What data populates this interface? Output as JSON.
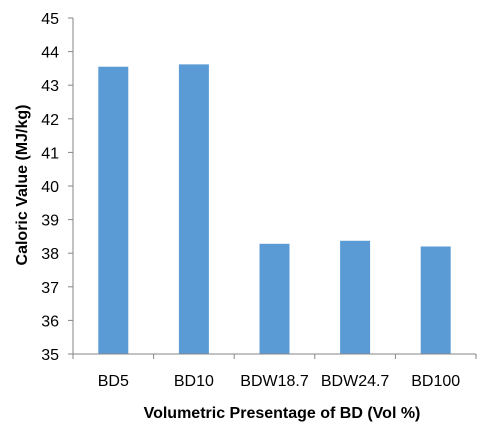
{
  "chart_data": {
    "type": "bar",
    "title": "",
    "xlabel": "Volumetric Presentage of BD (Vol %)",
    "ylabel": "Caloric Value (MJ/kg)",
    "categories": [
      "BD5",
      "BD10",
      "BDW18.7",
      "BDW24.7",
      "BD100"
    ],
    "values": [
      43.55,
      43.62,
      38.28,
      38.37,
      38.2
    ],
    "ylim": [
      35,
      45
    ],
    "yticks": [
      "35",
      "36",
      "37",
      "38",
      "39",
      "40",
      "41",
      "42",
      "43",
      "44",
      "45"
    ],
    "grid": false,
    "legend": "none",
    "bar_color": "#5b9bd5",
    "axis_color": "#868686"
  }
}
